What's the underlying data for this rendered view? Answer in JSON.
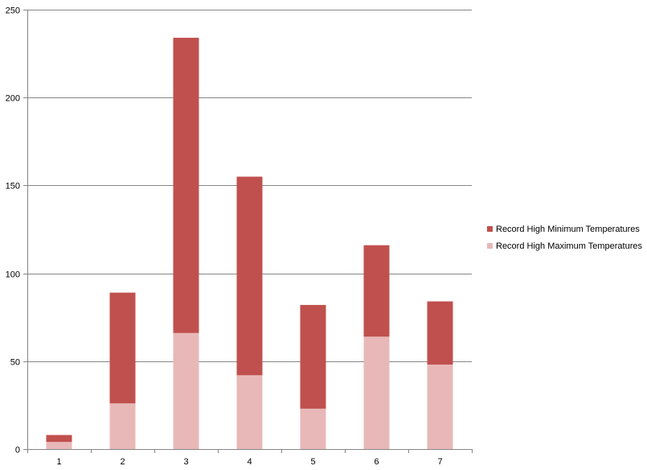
{
  "chart_data": {
    "type": "bar",
    "stacked": true,
    "categories": [
      "1",
      "2",
      "3",
      "4",
      "5",
      "6",
      "7"
    ],
    "series": [
      {
        "name": "Record High Maximum Temperatures",
        "color": "#e8b8b8",
        "values": [
          4,
          26,
          66,
          42,
          23,
          64,
          48
        ]
      },
      {
        "name": "Record High Minimum Temperatures",
        "color": "#c0504d",
        "values": [
          4,
          63,
          168,
          113,
          59,
          52,
          36
        ]
      }
    ],
    "yticks": [
      "0",
      "50",
      "100",
      "150",
      "200",
      "250"
    ],
    "ylim": [
      0,
      250
    ],
    "grid": true,
    "legend_position": "right"
  },
  "legend": {
    "items": [
      {
        "label": "Record High Minimum Temperatures",
        "color": "#c0504d"
      },
      {
        "label": "Record High Maximum Temperatures",
        "color": "#e8b8b8"
      }
    ]
  }
}
